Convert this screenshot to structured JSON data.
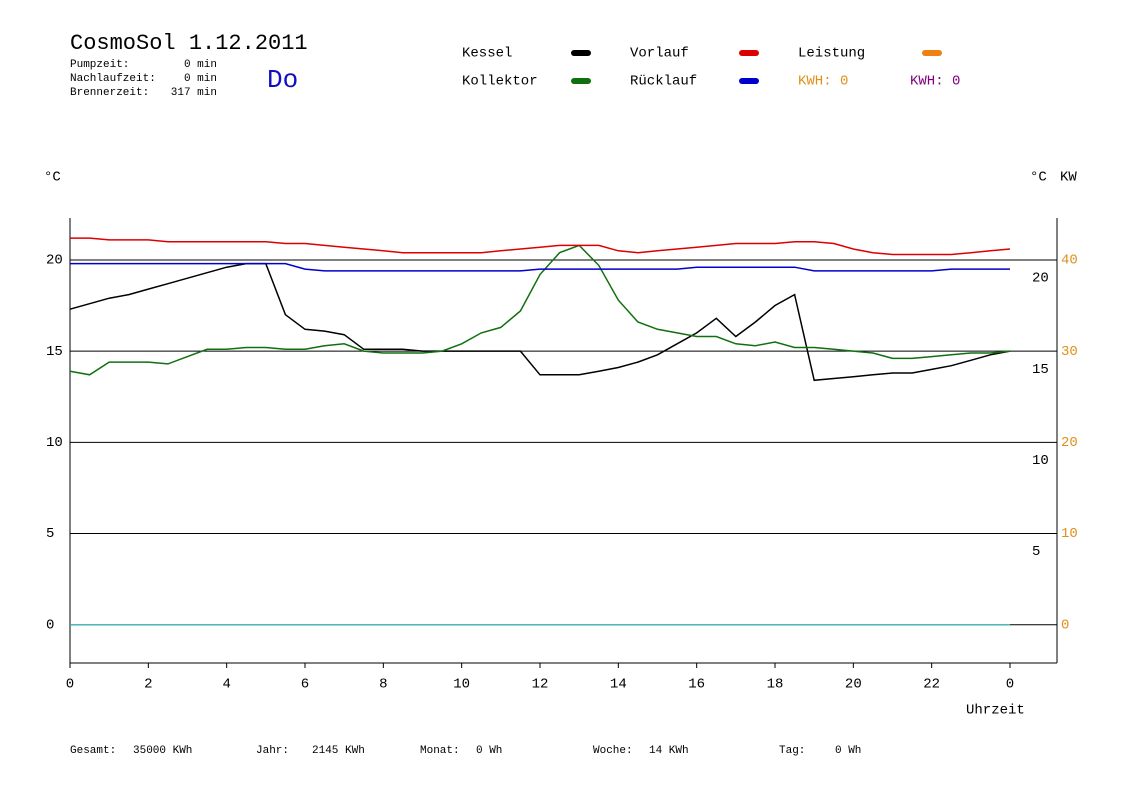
{
  "chart_data": {
    "type": "line",
    "title": "CosmoSol 1.12.2011",
    "day": "Do",
    "info": [
      [
        "Pumpzeit:",
        "0 min"
      ],
      [
        "Nachlaufzeit:",
        "0 min"
      ],
      [
        "Brennerzeit:",
        "317 min"
      ]
    ],
    "y_label": "°C",
    "y_label_right": "°C",
    "y2_label": "KW",
    "x_label": "Uhrzeit",
    "power_legend": {
      "name": "Leistung",
      "color": "#f08010"
    },
    "kwh": [
      {
        "label": "KWH: 0",
        "color": "#e0901a"
      },
      {
        "label": "KWH: 0",
        "color": "#800080"
      }
    ],
    "x": [
      0,
      0.5,
      1,
      1.5,
      2,
      2.5,
      3,
      3.5,
      4,
      4.5,
      5,
      5.5,
      6,
      6.5,
      7,
      7.5,
      8,
      8.5,
      9,
      9.5,
      10,
      10.5,
      11,
      11.5,
      12,
      12.5,
      13,
      13.5,
      14,
      14.5,
      15,
      15.5,
      16,
      16.5,
      17,
      17.5,
      18,
      18.5,
      19,
      19.5,
      20,
      20.5,
      21,
      21.5,
      22,
      22.5,
      23,
      23.5,
      24
    ],
    "series": [
      {
        "name": "Kessel",
        "color": "#000000",
        "values": [
          17.3,
          17.6,
          17.9,
          18.1,
          18.4,
          18.7,
          19.0,
          19.3,
          19.6,
          19.8,
          19.8,
          17.0,
          16.2,
          16.1,
          15.9,
          15.1,
          15.1,
          15.1,
          15.0,
          15.0,
          15.0,
          15.0,
          15.0,
          15.0,
          13.7,
          13.7,
          13.7,
          13.9,
          14.1,
          14.4,
          14.8,
          15.4,
          16.0,
          16.8,
          15.8,
          16.6,
          17.5,
          18.1,
          13.4,
          13.5,
          13.6,
          13.7,
          13.8,
          13.8,
          14.0,
          14.2,
          14.5,
          14.8,
          15.0
        ]
      },
      {
        "name": "Kollektor",
        "color": "#107010",
        "values": [
          13.9,
          13.7,
          14.4,
          14.4,
          14.4,
          14.3,
          14.7,
          15.1,
          15.1,
          15.2,
          15.2,
          15.1,
          15.1,
          15.3,
          15.4,
          15.0,
          14.9,
          14.9,
          14.9,
          15.0,
          15.4,
          16.0,
          16.3,
          17.2,
          19.2,
          20.4,
          20.8,
          19.7,
          17.8,
          16.6,
          16.2,
          16.0,
          15.8,
          15.8,
          15.4,
          15.3,
          15.5,
          15.2,
          15.2,
          15.1,
          15.0,
          14.9,
          14.6,
          14.6,
          14.7,
          14.8,
          14.9,
          14.9,
          15.0
        ]
      },
      {
        "name": "Vorlauf",
        "color": "#dd0000",
        "values": [
          21.2,
          21.2,
          21.1,
          21.1,
          21.1,
          21.0,
          21.0,
          21.0,
          21.0,
          21.0,
          21.0,
          20.9,
          20.9,
          20.8,
          20.7,
          20.6,
          20.5,
          20.4,
          20.4,
          20.4,
          20.4,
          20.4,
          20.5,
          20.6,
          20.7,
          20.8,
          20.8,
          20.8,
          20.5,
          20.4,
          20.5,
          20.6,
          20.7,
          20.8,
          20.9,
          20.9,
          20.9,
          21.0,
          21.0,
          20.9,
          20.6,
          20.4,
          20.3,
          20.3,
          20.3,
          20.3,
          20.4,
          20.5,
          20.6
        ]
      },
      {
        "name": "Rücklauf",
        "color": "#0000cc",
        "values": [
          19.8,
          19.8,
          19.8,
          19.8,
          19.8,
          19.8,
          19.8,
          19.8,
          19.8,
          19.8,
          19.8,
          19.8,
          19.5,
          19.4,
          19.4,
          19.4,
          19.4,
          19.4,
          19.4,
          19.4,
          19.4,
          19.4,
          19.4,
          19.4,
          19.5,
          19.5,
          19.5,
          19.5,
          19.5,
          19.5,
          19.5,
          19.5,
          19.6,
          19.6,
          19.6,
          19.6,
          19.6,
          19.6,
          19.4,
          19.4,
          19.4,
          19.4,
          19.4,
          19.4,
          19.4,
          19.5,
          19.5,
          19.5,
          19.5
        ]
      }
    ],
    "xlim": [
      0,
      25.2
    ],
    "xticks": [
      0,
      2,
      4,
      6,
      8,
      10,
      12,
      14,
      16,
      18,
      20,
      22,
      {
        "value": 24,
        "label": "0"
      }
    ],
    "ylim": [
      -2.1,
      22.3
    ],
    "yticks": [
      0,
      5,
      10,
      15,
      20
    ],
    "yticks_right": [
      5,
      10,
      15,
      20
    ],
    "y2lim": [
      -4.2,
      44.6
    ],
    "y2ticks": [
      0,
      10,
      20,
      30,
      40
    ],
    "y2_color": "#e0901a",
    "grid": true,
    "footer": [
      [
        "Gesamt:",
        "35000 KWh"
      ],
      [
        "Jahr:",
        "2145 KWh"
      ],
      [
        "Monat:",
        "0 Wh"
      ],
      [
        "Woche:",
        "14 KWh"
      ],
      [
        "Tag:",
        "0 Wh"
      ]
    ]
  }
}
